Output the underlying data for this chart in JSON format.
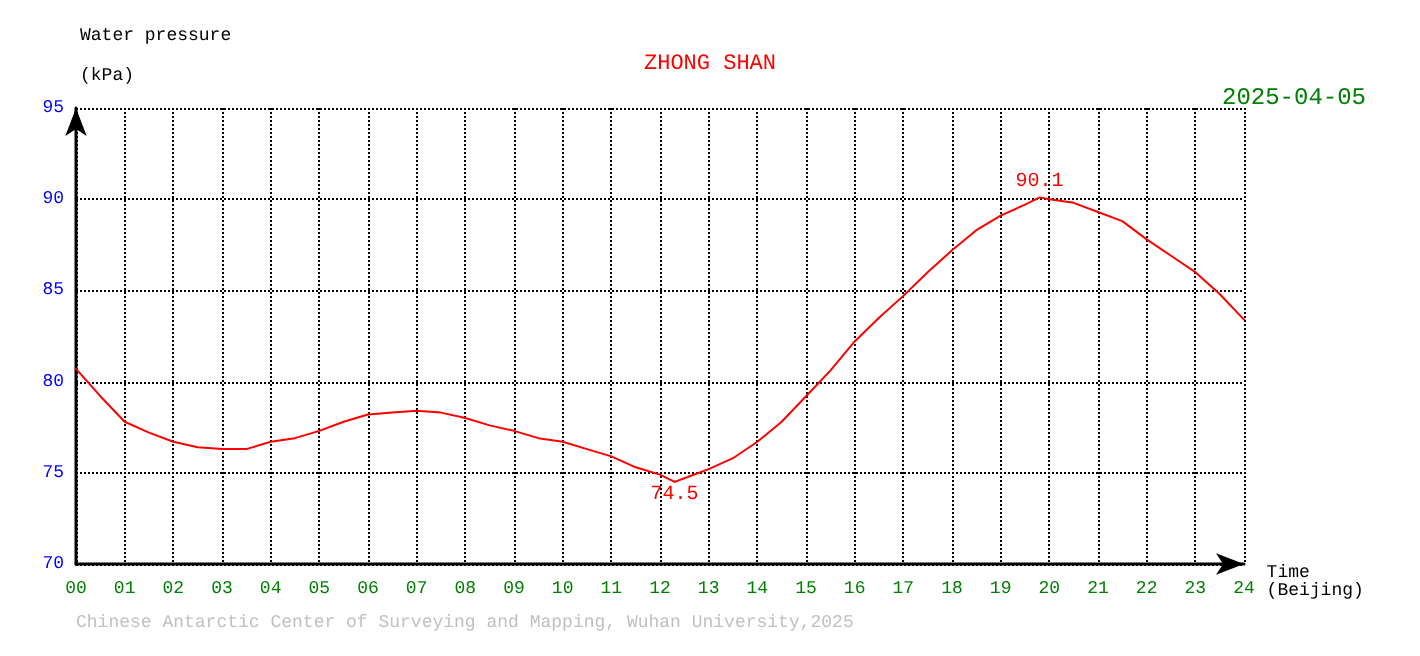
{
  "chart_data": {
    "type": "line",
    "title": "ZHONG SHAN",
    "subtitle": "2025-04-05",
    "xlabel": "Time\n(Beijing)",
    "ylabel": "Water pressure\n(kPa)",
    "x": [
      0,
      0.5,
      1,
      1.5,
      2,
      2.5,
      3,
      3.5,
      4,
      4.5,
      5,
      5.5,
      6,
      6.5,
      7,
      7.5,
      8,
      8.5,
      9,
      9.5,
      10,
      10.5,
      11,
      11.5,
      12,
      12.3,
      12.5,
      13,
      13.5,
      14,
      14.5,
      15,
      15.5,
      16,
      16.5,
      17,
      17.5,
      18,
      18.5,
      19,
      19.5,
      19.8,
      20,
      20.5,
      21,
      21.5,
      22,
      22.5,
      23,
      23.5,
      24
    ],
    "series": [
      {
        "color": "#ff0000",
        "values": [
          80.7,
          79.2,
          77.8,
          77.2,
          76.7,
          76.4,
          76.3,
          76.3,
          76.7,
          76.9,
          77.3,
          77.8,
          78.2,
          78.3,
          78.4,
          78.3,
          78.0,
          77.6,
          77.3,
          76.9,
          76.7,
          76.3,
          75.9,
          75.3,
          74.9,
          74.5,
          74.7,
          75.2,
          75.8,
          76.7,
          77.8,
          79.2,
          80.6,
          82.2,
          83.5,
          84.7,
          86.0,
          87.2,
          88.3,
          89.1,
          89.7,
          90.1,
          90.0,
          89.8,
          89.3,
          88.8,
          87.8,
          86.9,
          86.0,
          84.8,
          83.4
        ]
      }
    ],
    "xlim": [
      0,
      24
    ],
    "ylim": [
      70,
      95
    ],
    "xticks": [
      {
        "value": 0,
        "label": "00"
      },
      {
        "value": 1,
        "label": "01"
      },
      {
        "value": 2,
        "label": "02"
      },
      {
        "value": 3,
        "label": "03"
      },
      {
        "value": 4,
        "label": "04"
      },
      {
        "value": 5,
        "label": "05"
      },
      {
        "value": 6,
        "label": "06"
      },
      {
        "value": 7,
        "label": "07"
      },
      {
        "value": 8,
        "label": "08"
      },
      {
        "value": 9,
        "label": "09"
      },
      10,
      11,
      12,
      13,
      14,
      15,
      16,
      17,
      18,
      19,
      20,
      21,
      22,
      23,
      24
    ],
    "yticks": [
      70,
      75,
      80,
      85,
      90,
      95
    ],
    "grid": true,
    "marker": "none",
    "line_style": "solid",
    "annotations": [
      {
        "text": "90.1",
        "x": 19.8,
        "y": 90.1
      },
      {
        "text": "74.5",
        "x": 12.3,
        "y": 74.5
      },
      "Chinese Antarctic Center of Surveying and Mapping, Wuhan University,2025"
    ]
  }
}
